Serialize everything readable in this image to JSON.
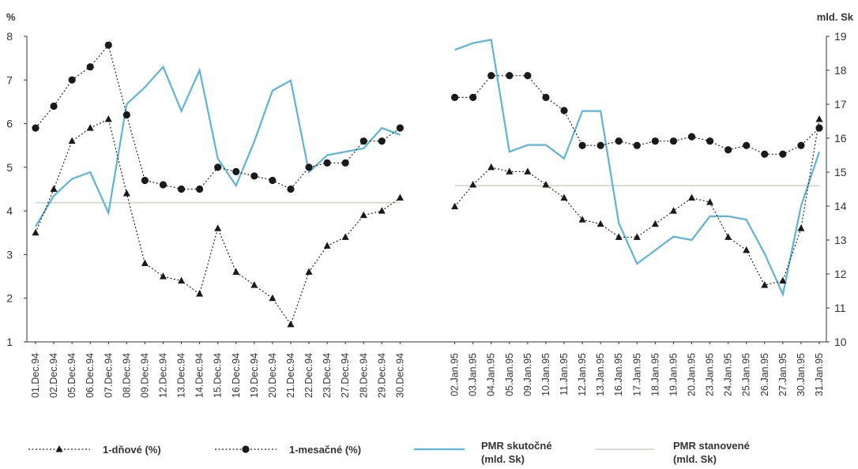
{
  "chart_data": {
    "type": "line",
    "left_axis": {
      "unit": "%",
      "min": 1,
      "max": 8,
      "ticks": [
        "1",
        "2",
        "3",
        "4",
        "5",
        "6",
        "7",
        "8"
      ]
    },
    "right_axis": {
      "unit": "mld. Sk",
      "min": 10,
      "max": 19,
      "ticks": [
        "10",
        "11",
        "12",
        "13",
        "14",
        "15",
        "16",
        "17",
        "18",
        "19"
      ]
    },
    "grid": false,
    "legend_position": "bottom",
    "categories": [
      "01.Dec.94",
      "02.Dec.94",
      "05.Dec.94",
      "06.Dec.94",
      "07.Dec.94",
      "08.Dec.94",
      "09.Dec.94",
      "12.Dec.94",
      "13.Dec.94",
      "14.Dec.94",
      "15.Dec.94",
      "16.Dec.94",
      "19.Dec.94",
      "20.Dec.94",
      "21.Dec.94",
      "22.Dec.94",
      "23.Dec.94",
      "27.Dec.94",
      "28.Dec.94",
      "29.Dec.94",
      "30.Dec.94",
      "02.Jan.95",
      "03.Jan.95",
      "04.Jan.95",
      "05.Jan.95",
      "09.Jan.95",
      "10.Jan.95",
      "11.Jan.95",
      "12.Jan.95",
      "13.Jan.95",
      "16.Jan.95",
      "17.Jan.95",
      "18.Jan.95",
      "19.Jan.95",
      "20.Jan.95",
      "23.Jan.95",
      "24.Jan.95",
      "25.Jan.95",
      "26.Jan.95",
      "27.Jan.95",
      "30.Jan.95",
      "31.Jan.95"
    ],
    "series": [
      {
        "name": "1-dňové (%)",
        "axis": "left",
        "color": "#222222",
        "style": "dotted-triangle",
        "values": [
          3.5,
          4.5,
          5.6,
          5.9,
          6.1,
          4.4,
          2.8,
          2.5,
          2.4,
          2.1,
          3.6,
          2.6,
          2.3,
          2.0,
          1.4,
          2.6,
          3.2,
          3.4,
          3.9,
          4.0,
          4.3,
          4.1,
          4.6,
          5.0,
          4.9,
          4.9,
          4.6,
          4.3,
          3.8,
          3.7,
          3.4,
          3.4,
          3.7,
          4.0,
          4.3,
          4.2,
          3.4,
          3.1,
          2.3,
          2.4,
          3.6,
          6.1
        ]
      },
      {
        "name": "1-mesačné (%)",
        "axis": "left",
        "color": "#222222",
        "style": "dotted-circle",
        "values": [
          5.9,
          6.4,
          7.0,
          7.3,
          7.8,
          6.2,
          4.7,
          4.6,
          4.5,
          4.5,
          5.0,
          4.9,
          4.8,
          4.7,
          4.5,
          5.0,
          5.1,
          5.1,
          5.6,
          5.6,
          5.9,
          6.6,
          6.6,
          7.1,
          7.1,
          7.1,
          6.6,
          6.3,
          5.5,
          5.5,
          5.6,
          5.5,
          5.6,
          5.6,
          5.7,
          5.6,
          5.4,
          5.5,
          5.3,
          5.3,
          5.5,
          5.9
        ]
      },
      {
        "name": "PMR skutočné (mld. Sk)",
        "axis": "right",
        "color": "#5ab4dc",
        "style": "solid",
        "values": [
          13.4,
          14.3,
          14.8,
          15.0,
          13.8,
          17.0,
          17.5,
          18.1,
          16.8,
          18.0,
          15.4,
          14.6,
          15.9,
          17.4,
          17.7,
          15.0,
          15.5,
          15.6,
          15.7,
          16.3,
          16.1,
          18.6,
          18.8,
          18.9,
          15.6,
          15.8,
          15.8,
          15.4,
          16.8,
          16.8,
          13.5,
          12.3,
          12.7,
          13.1,
          13.0,
          13.7,
          13.7,
          13.6,
          12.6,
          11.4,
          14.0,
          15.6
        ]
      },
      {
        "name": "PMR stanovené (mld. Sk)",
        "axis": "right",
        "color": "#cfd8c4",
        "style": "solid-thin",
        "values": [
          14.1,
          14.1,
          14.1,
          14.1,
          14.1,
          14.1,
          14.1,
          14.1,
          14.1,
          14.1,
          14.1,
          14.1,
          14.1,
          14.1,
          14.1,
          14.1,
          14.1,
          14.1,
          14.1,
          14.1,
          14.1,
          14.6,
          14.6,
          14.6,
          14.6,
          14.6,
          14.6,
          14.6,
          14.6,
          14.6,
          14.6,
          14.6,
          14.6,
          14.6,
          14.6,
          14.6,
          14.6,
          14.6,
          14.6,
          14.6,
          14.6,
          14.6
        ]
      }
    ],
    "legend": [
      {
        "line1": "1-dňové (%)",
        "line2": ""
      },
      {
        "line1": "1-mesačné (%)",
        "line2": ""
      },
      {
        "line1": "PMR skutočné",
        "line2": "(mld. Sk)"
      },
      {
        "line1": "PMR stanovené",
        "line2": "(mld. Sk)"
      }
    ]
  }
}
